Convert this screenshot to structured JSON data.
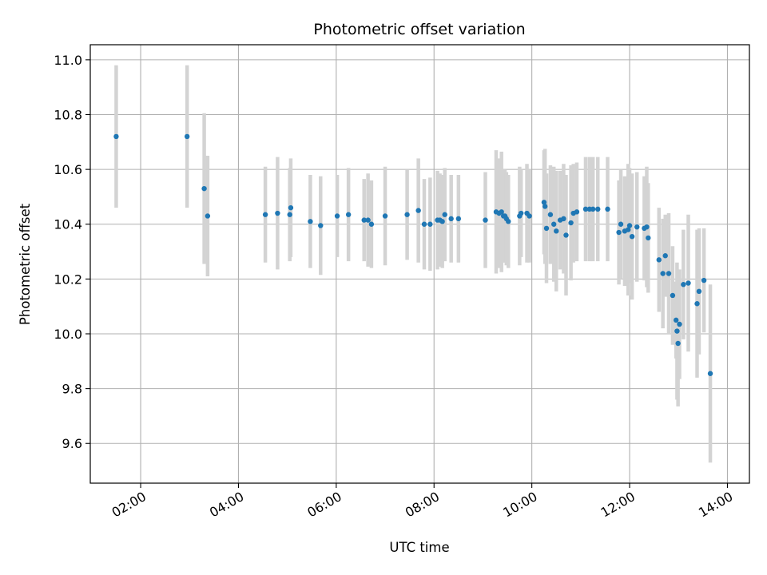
{
  "chart_data": {
    "type": "scatter",
    "title": "Photometric offset variation",
    "xlabel": "UTC time",
    "ylabel": "Photometric offset",
    "x_unit": "hours UTC",
    "xlim": [
      0.97,
      14.45
    ],
    "ylim": [
      9.455,
      11.055
    ],
    "x_ticks": [
      2,
      4,
      6,
      8,
      10,
      12,
      14
    ],
    "x_tick_labels": [
      "02:00",
      "04:00",
      "06:00",
      "08:00",
      "10:00",
      "12:00",
      "14:00"
    ],
    "y_ticks": [
      9.6,
      9.8,
      10.0,
      10.2,
      10.4,
      10.6,
      10.8,
      11.0
    ],
    "y_tick_labels": [
      "9.6",
      "9.8",
      "10.0",
      "10.2",
      "10.4",
      "10.6",
      "10.8",
      "11.0"
    ],
    "grid": true,
    "legend": "none",
    "colors": {
      "point": "#1f77b4",
      "errorbar": "#d3d3d3",
      "grid": "#b0b0b0"
    },
    "series": [
      {
        "x": [
          1.5,
          2.95,
          3.3,
          3.37,
          4.55,
          4.8,
          5.05,
          5.07,
          5.47,
          5.68,
          6.02,
          6.25,
          6.57,
          6.65,
          6.72,
          7.0,
          7.45,
          7.68,
          7.8,
          7.92,
          8.07,
          8.12,
          8.17,
          8.22,
          8.35,
          8.5,
          9.05,
          9.27,
          9.33,
          9.38,
          9.42,
          9.45,
          9.48,
          9.52,
          9.75,
          9.78,
          9.9,
          9.95,
          10.25,
          10.27,
          10.3,
          10.38,
          10.45,
          10.5,
          10.58,
          10.65,
          10.7,
          10.8,
          10.85,
          10.92,
          11.1,
          11.18,
          11.25,
          11.35,
          11.55,
          11.78,
          11.82,
          11.9,
          11.97,
          12.0,
          12.05,
          12.15,
          12.3,
          12.35,
          12.38,
          12.6,
          12.68,
          12.73,
          12.8,
          12.88,
          12.95,
          12.97,
          12.99,
          13.02,
          13.1,
          13.2,
          13.38,
          13.42,
          13.52,
          13.65
        ],
        "y": [
          10.72,
          10.72,
          10.53,
          10.43,
          10.435,
          10.44,
          10.435,
          10.46,
          10.41,
          10.395,
          10.43,
          10.435,
          10.415,
          10.415,
          10.4,
          10.43,
          10.435,
          10.45,
          10.4,
          10.4,
          10.415,
          10.415,
          10.41,
          10.435,
          10.42,
          10.42,
          10.415,
          10.445,
          10.44,
          10.445,
          10.43,
          10.43,
          10.42,
          10.41,
          10.43,
          10.44,
          10.44,
          10.43,
          10.48,
          10.465,
          10.385,
          10.435,
          10.4,
          10.375,
          10.415,
          10.42,
          10.36,
          10.405,
          10.44,
          10.445,
          10.455,
          10.455,
          10.455,
          10.455,
          10.455,
          10.37,
          10.4,
          10.375,
          10.38,
          10.395,
          10.355,
          10.39,
          10.385,
          10.39,
          10.35,
          10.27,
          10.22,
          10.285,
          10.22,
          10.14,
          10.05,
          10.01,
          9.965,
          10.035,
          10.18,
          10.185,
          10.11,
          10.155,
          10.195,
          9.855
        ],
        "err": [
          0.26,
          0.26,
          0.275,
          0.22,
          0.175,
          0.205,
          0.17,
          0.18,
          0.17,
          0.18,
          0.15,
          0.17,
          0.15,
          0.17,
          0.16,
          0.18,
          0.165,
          0.19,
          0.165,
          0.17,
          0.18,
          0.17,
          0.17,
          0.17,
          0.16,
          0.16,
          0.175,
          0.225,
          0.2,
          0.22,
          0.17,
          0.17,
          0.17,
          0.17,
          0.18,
          0.16,
          0.18,
          0.17,
          0.19,
          0.21,
          0.2,
          0.18,
          0.21,
          0.22,
          0.18,
          0.2,
          0.22,
          0.21,
          0.18,
          0.18,
          0.19,
          0.19,
          0.19,
          0.19,
          0.19,
          0.19,
          0.2,
          0.2,
          0.24,
          0.21,
          0.23,
          0.2,
          0.19,
          0.22,
          0.2,
          0.19,
          0.2,
          0.15,
          0.22,
          0.18,
          0.14,
          0.25,
          0.23,
          0.2,
          0.2,
          0.25,
          0.27,
          0.23,
          0.19,
          0.325
        ]
      }
    ]
  }
}
